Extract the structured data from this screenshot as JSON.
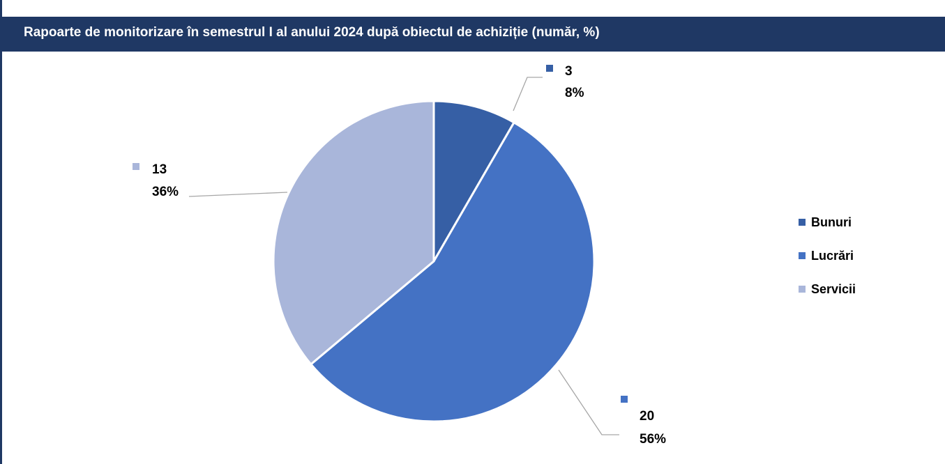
{
  "title": "Rapoarte de monitorizare în semestrul I al anului 2024 după obiectul de achiziție (număr, %)",
  "colors": {
    "header_bg": "#1f3864",
    "header_text": "#ffffff",
    "bunuri": "#365fa5",
    "lucrari": "#4472c4",
    "servicii": "#a9b6da",
    "leader": "#a6a6a6"
  },
  "chart_data": {
    "type": "pie",
    "title": "Rapoarte de monitorizare în semestrul I al anului 2024 după obiectul de achiziție (număr, %)",
    "categories": [
      "Bunuri",
      "Lucrări",
      "Servicii"
    ],
    "values": [
      3,
      20,
      13
    ],
    "percent_labels": [
      "8%",
      "56%",
      "36%"
    ],
    "value_labels": [
      "3",
      "20",
      "13"
    ],
    "colors": [
      "#365fa5",
      "#4472c4",
      "#a9b6da"
    ],
    "legend": "right"
  }
}
